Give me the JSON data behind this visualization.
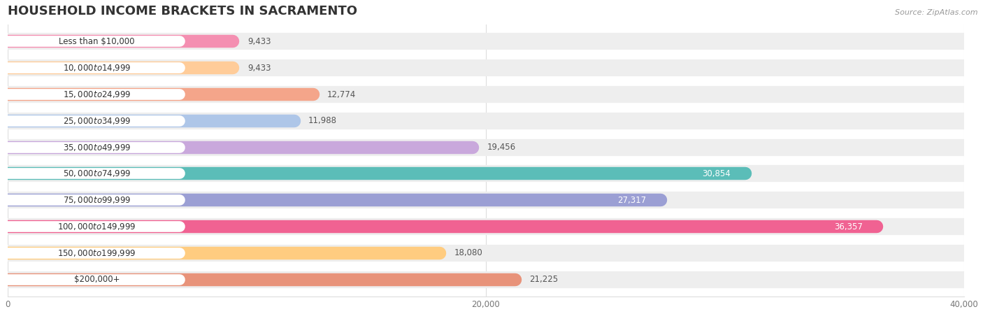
{
  "title": "HOUSEHOLD INCOME BRACKETS IN SACRAMENTO",
  "source": "Source: ZipAtlas.com",
  "categories": [
    "Less than $10,000",
    "$10,000 to $14,999",
    "$15,000 to $24,999",
    "$25,000 to $34,999",
    "$35,000 to $49,999",
    "$50,000 to $74,999",
    "$75,000 to $99,999",
    "$100,000 to $149,999",
    "$150,000 to $199,999",
    "$200,000+"
  ],
  "values": [
    9433,
    9433,
    12774,
    11988,
    19456,
    30854,
    27317,
    36357,
    18080,
    21225
  ],
  "colors": [
    "#F48FB1",
    "#FFCC99",
    "#F4A58A",
    "#AEC6E8",
    "#C9A8DC",
    "#5BBDB8",
    "#9B9FD4",
    "#F06292",
    "#FFCC80",
    "#E8937A"
  ],
  "bar_bg_color": "#EEEEEE",
  "xlim": [
    0,
    40000
  ],
  "xticks": [
    0,
    20000,
    40000
  ],
  "xticklabels": [
    "0",
    "20,000",
    "40,000"
  ],
  "bg_color": "#FFFFFF",
  "plot_bg_color": "#FFFFFF",
  "value_color_outside": "#555555",
  "value_color_inside": "#FFFFFF",
  "title_fontsize": 13,
  "label_fontsize": 8.5,
  "value_fontsize": 8.5,
  "tick_fontsize": 8.5,
  "inside_threshold": 22000
}
